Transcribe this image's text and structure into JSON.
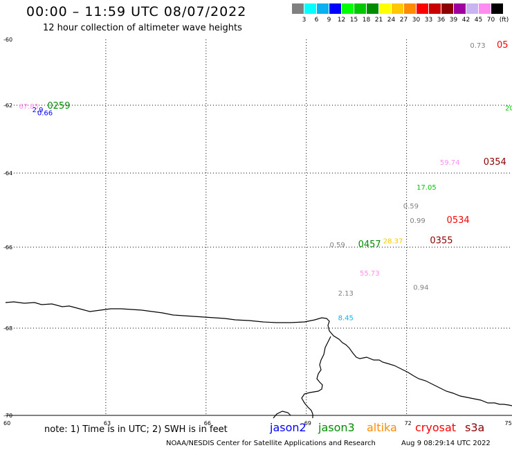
{
  "title": "00:00 – 11:59 UTC 08/07/2022",
  "subtitle": "12 hour collection of altimeter wave heights",
  "legend": {
    "unit": "(ft)",
    "items": [
      {
        "color": "#808080",
        "label": "3"
      },
      {
        "color": "#00ffff",
        "label": "6"
      },
      {
        "color": "#0bb0f0",
        "label": "9"
      },
      {
        "color": "#0000ff",
        "label": "12"
      },
      {
        "color": "#00ff00",
        "label": "15"
      },
      {
        "color": "#00c800",
        "label": "18"
      },
      {
        "color": "#008c00",
        "label": "21"
      },
      {
        "color": "#ffff00",
        "label": "24"
      },
      {
        "color": "#ffc800",
        "label": "27"
      },
      {
        "color": "#ff8c00",
        "label": "30"
      },
      {
        "color": "#ff0000",
        "label": "33"
      },
      {
        "color": "#c80000",
        "label": "36"
      },
      {
        "color": "#8c0000",
        "label": "39"
      },
      {
        "color": "#a000a0",
        "label": "42"
      },
      {
        "color": "#c8b4f0",
        "label": "45"
      },
      {
        "color": "#ff8cf0",
        "label": "70"
      },
      {
        "color": "#000000",
        "label": ""
      }
    ]
  },
  "axes": {
    "lat_labels": [
      "-60",
      "-62",
      "-64",
      "-66",
      "-68",
      "-70"
    ],
    "lon_labels": [
      "60",
      "63",
      "66",
      "69",
      "72",
      "75"
    ]
  },
  "observations": [
    {
      "text": "0.73",
      "lon": 73.9,
      "lat": -60.25,
      "color": "#808080"
    },
    {
      "text": "05",
      "lon": 74.7,
      "lat": -60.25,
      "color": "#ff0000",
      "big": true
    },
    {
      "text": "67.85",
      "lon": 60.4,
      "lat": -62.1,
      "color": "#ff8cf0"
    },
    {
      "text": "2.9",
      "lon": 60.8,
      "lat": -62.2,
      "color": "#0000ff"
    },
    {
      "text": "0.66",
      "lon": 60.95,
      "lat": -62.3,
      "color": "#0000ff"
    },
    {
      "text": "0259",
      "lon": 61.25,
      "lat": -62.1,
      "color": "#008c00",
      "big": true
    },
    {
      "text": "20",
      "lon": 74.95,
      "lat": -62.15,
      "color": "#00c800"
    },
    {
      "text": "59.74",
      "lon": 73.0,
      "lat": -63.75,
      "color": "#ff8cf0"
    },
    {
      "text": "0354",
      "lon": 74.3,
      "lat": -63.75,
      "color": "#8c0000",
      "big": true
    },
    {
      "text": "17.05",
      "lon": 72.3,
      "lat": -64.45,
      "color": "#00c800"
    },
    {
      "text": "0.59",
      "lon": 71.9,
      "lat": -64.95,
      "color": "#808080"
    },
    {
      "text": "0.99",
      "lon": 72.1,
      "lat": -65.35,
      "color": "#808080"
    },
    {
      "text": "0534",
      "lon": 73.2,
      "lat": -65.35,
      "color": "#ff0000",
      "big": true
    },
    {
      "text": "0.59",
      "lon": 69.7,
      "lat": -66.0,
      "color": "#808080"
    },
    {
      "text": "0457",
      "lon": 70.55,
      "lat": -66.0,
      "color": "#008c00",
      "big": true
    },
    {
      "text": "28.37",
      "lon": 71.3,
      "lat": -65.9,
      "color": "#ffc800"
    },
    {
      "text": "0355",
      "lon": 72.7,
      "lat": -65.9,
      "color": "#8c0000",
      "big": true
    },
    {
      "text": "55.73",
      "lon": 70.6,
      "lat": -66.7,
      "color": "#ff8cf0"
    },
    {
      "text": "2.13",
      "lon": 69.95,
      "lat": -67.2,
      "color": "#808080"
    },
    {
      "text": "0.94",
      "lon": 72.2,
      "lat": -67.05,
      "color": "#808080"
    },
    {
      "text": "8.45",
      "lon": 69.95,
      "lat": -67.8,
      "color": "#0bb0f0"
    }
  ],
  "satellites": [
    {
      "name": "jason2",
      "color": "#0000ff"
    },
    {
      "name": "jason3",
      "color": "#008c00"
    },
    {
      "name": "altika",
      "color": "#ff8c00"
    },
    {
      "name": "cryosat",
      "color": "#ff0000"
    },
    {
      "name": "s3a",
      "color": "#8c0000"
    }
  ],
  "footer": {
    "note": "note:  1)  Time is in UTC;  2)  SWH is in feet",
    "credit": "NOAA/NESDIS Center for Satellite Applications and Research",
    "generated": "Aug  9 08:29:14 UTC 2022"
  }
}
